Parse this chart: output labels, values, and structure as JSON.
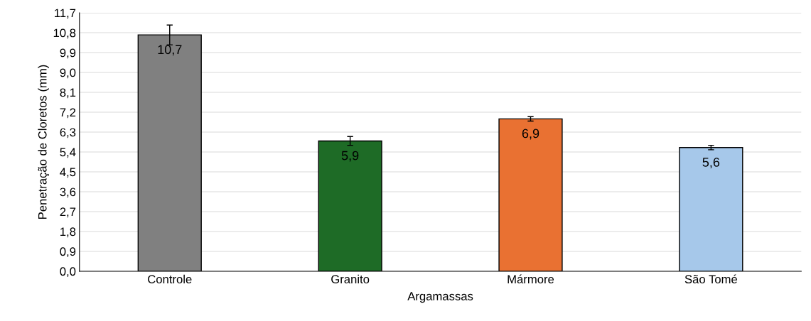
{
  "chart_data": {
    "type": "bar",
    "xlabel": "Argamassas",
    "ylabel": "Penetração de Cloretos (mm)",
    "categories": [
      "Controle",
      "Granito",
      "Mármore",
      "São Tomé"
    ],
    "values": [
      10.7,
      5.9,
      6.9,
      5.6
    ],
    "colors": [
      "#808080",
      "#1e6b26",
      "#e97132",
      "#a6c8ea"
    ],
    "errors": [
      0.45,
      0.2,
      0.1,
      0.1
    ],
    "value_labels": [
      "10,7",
      "5,9",
      "6,9",
      "5,6"
    ],
    "ylim": [
      0,
      11.7
    ],
    "yticks": [
      {
        "value": 0,
        "label": "0,0"
      },
      {
        "value": 0.9,
        "label": "0,9"
      },
      {
        "value": 1.8,
        "label": "1,8"
      },
      {
        "value": 2.7,
        "label": "2,7"
      },
      {
        "value": 3.6,
        "label": "3,6"
      },
      {
        "value": 4.5,
        "label": "4,5"
      },
      {
        "value": 5.4,
        "label": "5,4"
      },
      {
        "value": 6.3,
        "label": "6,3"
      },
      {
        "value": 7.2,
        "label": "7,2"
      },
      {
        "value": 8.1,
        "label": "8,1"
      },
      {
        "value": 9.0,
        "label": "9,0"
      },
      {
        "value": 9.9,
        "label": "9,9"
      },
      {
        "value": 10.8,
        "label": "10,8"
      },
      {
        "value": 11.7,
        "label": "11,7"
      }
    ],
    "grid": "y",
    "legend": false
  }
}
